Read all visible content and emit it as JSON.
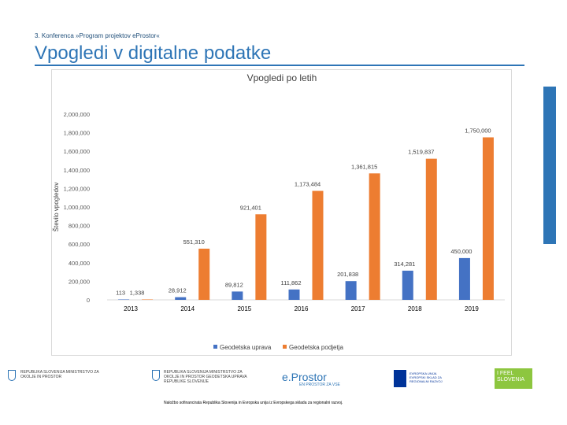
{
  "header": {
    "subtitle": "3. Konferenca »Program projektov eProstor«",
    "title": "Vpogledi v digitalne podatke"
  },
  "chart_data": {
    "type": "bar",
    "title": "Vpogledi po letih",
    "xlabel": "",
    "ylabel": "Število vpogledov",
    "ylim": [
      0,
      2000000
    ],
    "yticks": [
      "0",
      "200,000",
      "400,000",
      "600,000",
      "800,000",
      "1,000,000",
      "1,200,000",
      "1,400,000",
      "1,600,000",
      "1,800,000",
      "2,000,000"
    ],
    "categories": [
      "2013",
      "2014",
      "2015",
      "2016",
      "2017",
      "2018",
      "2019"
    ],
    "series": [
      {
        "name": "Geodetska uprava",
        "color": "#4472c4",
        "values": [
          113,
          28912,
          89812,
          111862,
          201838,
          314281,
          450000
        ],
        "labels": [
          "113",
          "28,912",
          "89,812",
          "111,862",
          "201,838",
          "314,281",
          "450,000"
        ]
      },
      {
        "name": "Geodetska podjetja",
        "color": "#ed7d31",
        "values": [
          1338,
          551310,
          921401,
          1173484,
          1361815,
          1519837,
          1750000
        ],
        "labels": [
          "1,338",
          "551,310",
          "921,401",
          "1,173,484",
          "1,361,815",
          "1,519,837",
          "1,750,000"
        ]
      }
    ],
    "legend": "bottom"
  },
  "footer": {
    "logo1": "REPUBLIKA SLOVENIJA MINISTRSTVO ZA OKOLJE IN PROSTOR",
    "logo2": "REPUBLIKA SLOVENIJA MINISTRSTVO ZA OKOLJE IN PROSTOR GEODETSKA UPRAVA REPUBLIKE SLOVENIJE",
    "eprostor": "e.Prostor",
    "eprostor_sub": "EN PROSTOR ZA VSE",
    "eu_text": "EVROPSKA UNIJA EVROPSKI SKLAD ZA REGIONALNI RAZVOJ",
    "feel": "I FEEL SLOVENIA",
    "note": "Naložbo sofinancirata Republika Slovenija in Evropska unija iz Evropskega sklada za regionalni razvoj."
  }
}
